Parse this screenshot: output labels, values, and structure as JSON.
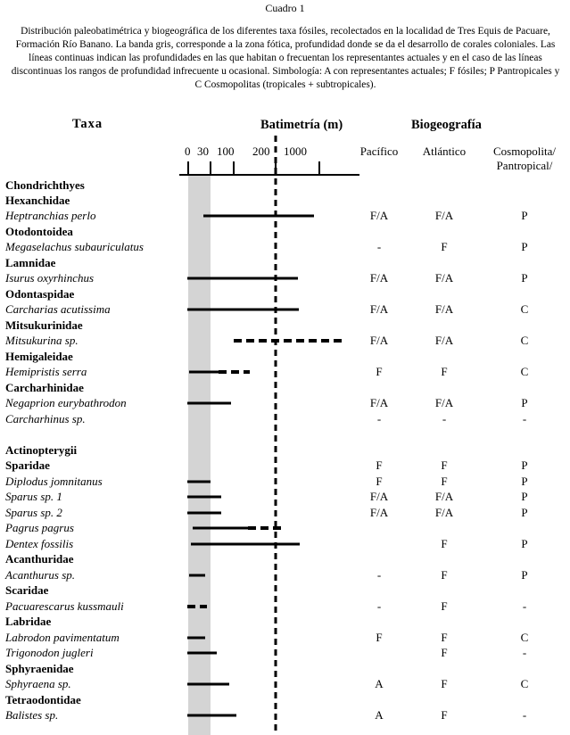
{
  "page": {
    "title": "Cuadro 1",
    "caption": "Distribución paleobatimétrica y biogeográfica de los diferentes taxa fósiles, recolectados en la localidad de Tres Equis de Pacuare, Formación Río Banano. La banda gris, corresponde a la zona fótica, profundidad donde se da el desarrollo de corales coloniales. Las líneas continuas indican las profundidades en las que habitan o frecuentan los representantes actuales y en el caso de las líneas discontinuas los rangos de profundidad infrecuente u ocasional. Simbología: A con representantes actuales; F fósiles; P Pantropicales y C Cosmopolitas (tropicales + subtropicales)."
  },
  "headers": {
    "taxa": "Taxa",
    "bathymetry": "Batimetría (m)",
    "biogeography": "Biogeografía",
    "pacific": "Pacífico",
    "atlantic": "Atlántico",
    "cosmopolitan_line1": "Cosmopolita/",
    "cosmopolitan_line2": "Pantropical/"
  },
  "depth_ticks": [
    "0",
    "30",
    "100",
    "200",
    "1000"
  ],
  "colors": {
    "photic_band": "#d4d4d4",
    "line": "#000000"
  },
  "rows": [
    {
      "label": "Chondrichthyes",
      "kind": "group"
    },
    {
      "label": "Hexanchidae",
      "kind": "family"
    },
    {
      "label": "Heptranchias perlo",
      "kind": "species",
      "pac": "F/A",
      "atl": "F/A",
      "cos": "P"
    },
    {
      "label": "Otodontoidea",
      "kind": "family"
    },
    {
      "label": "Megaselachus subauriculatus",
      "kind": "species",
      "pac": "-",
      "atl": "F",
      "cos": "P"
    },
    {
      "label": "Lamnidae",
      "kind": "family"
    },
    {
      "label": "Isurus oxyrhinchus",
      "kind": "species",
      "pac": "F/A",
      "atl": "F/A",
      "cos": "P"
    },
    {
      "label": "Odontaspidae",
      "kind": "family"
    },
    {
      "label": "Carcharias acutissima",
      "kind": "species",
      "pac": "F/A",
      "atl": "F/A",
      "cos": "C"
    },
    {
      "label": "Mitsukurinidae",
      "kind": "family"
    },
    {
      "label": "Mitsukurina sp.",
      "kind": "species",
      "pac": "F/A",
      "atl": "F/A",
      "cos": "C"
    },
    {
      "label": "Hemigaleidae",
      "kind": "family"
    },
    {
      "label": "Hemipristis serra",
      "kind": "species",
      "pac": "F",
      "atl": "F",
      "cos": "C"
    },
    {
      "label": "Carcharhinidae",
      "kind": "family"
    },
    {
      "label": "Negaprion eurybathrodon",
      "kind": "species",
      "pac": "F/A",
      "atl": "F/A",
      "cos": "P"
    },
    {
      "label": "Carcharhinus sp.",
      "kind": "species",
      "pac": "-",
      "atl": "-",
      "cos": "-"
    },
    {
      "label": "",
      "kind": "blank"
    },
    {
      "label": "Actinopterygii",
      "kind": "group"
    },
    {
      "label": "Sparidae",
      "kind": "family",
      "pac": "F",
      "atl": "F",
      "cos": "P"
    },
    {
      "label": "Diplodus jomnitanus",
      "kind": "species",
      "pac": "F",
      "atl": "F",
      "cos": "P"
    },
    {
      "label": "Sparus sp. 1",
      "kind": "species",
      "pac": "F/A",
      "atl": "F/A",
      "cos": "P"
    },
    {
      "label": "Sparus sp. 2",
      "kind": "species",
      "pac": "F/A",
      "atl": "F/A",
      "cos": "P"
    },
    {
      "label": "Pagrus pagrus",
      "kind": "species"
    },
    {
      "label": "Dentex fossilis",
      "kind": "species",
      "atl": "F",
      "cos": "P"
    },
    {
      "label": "Acanthuridae",
      "kind": "family"
    },
    {
      "label": "Acanthurus sp.",
      "kind": "species",
      "pac": "-",
      "atl": "F",
      "cos": "P"
    },
    {
      "label": "Scaridae",
      "kind": "family"
    },
    {
      "label": "Pacuarescarus kussmauli",
      "kind": "species",
      "pac": "-",
      "atl": "F",
      "cos": "-"
    },
    {
      "label": "Labridae",
      "kind": "family"
    },
    {
      "label": "Labrodon pavimentatum",
      "kind": "species",
      "pac": "F",
      "atl": "F",
      "cos": "C"
    },
    {
      "label": "Trigonodon jugleri",
      "kind": "species",
      "atl": "F",
      "cos": "-"
    },
    {
      "label": "Sphyraenidae",
      "kind": "family"
    },
    {
      "label": "Sphyraena sp.",
      "kind": "species",
      "pac": "A",
      "atl": "F",
      "cos": "C"
    },
    {
      "label": "Tetraodontidae",
      "kind": "family"
    },
    {
      "label": "Balistes sp.",
      "kind": "species",
      "pac": "A",
      "atl": "F",
      "cos": "-"
    }
  ]
}
